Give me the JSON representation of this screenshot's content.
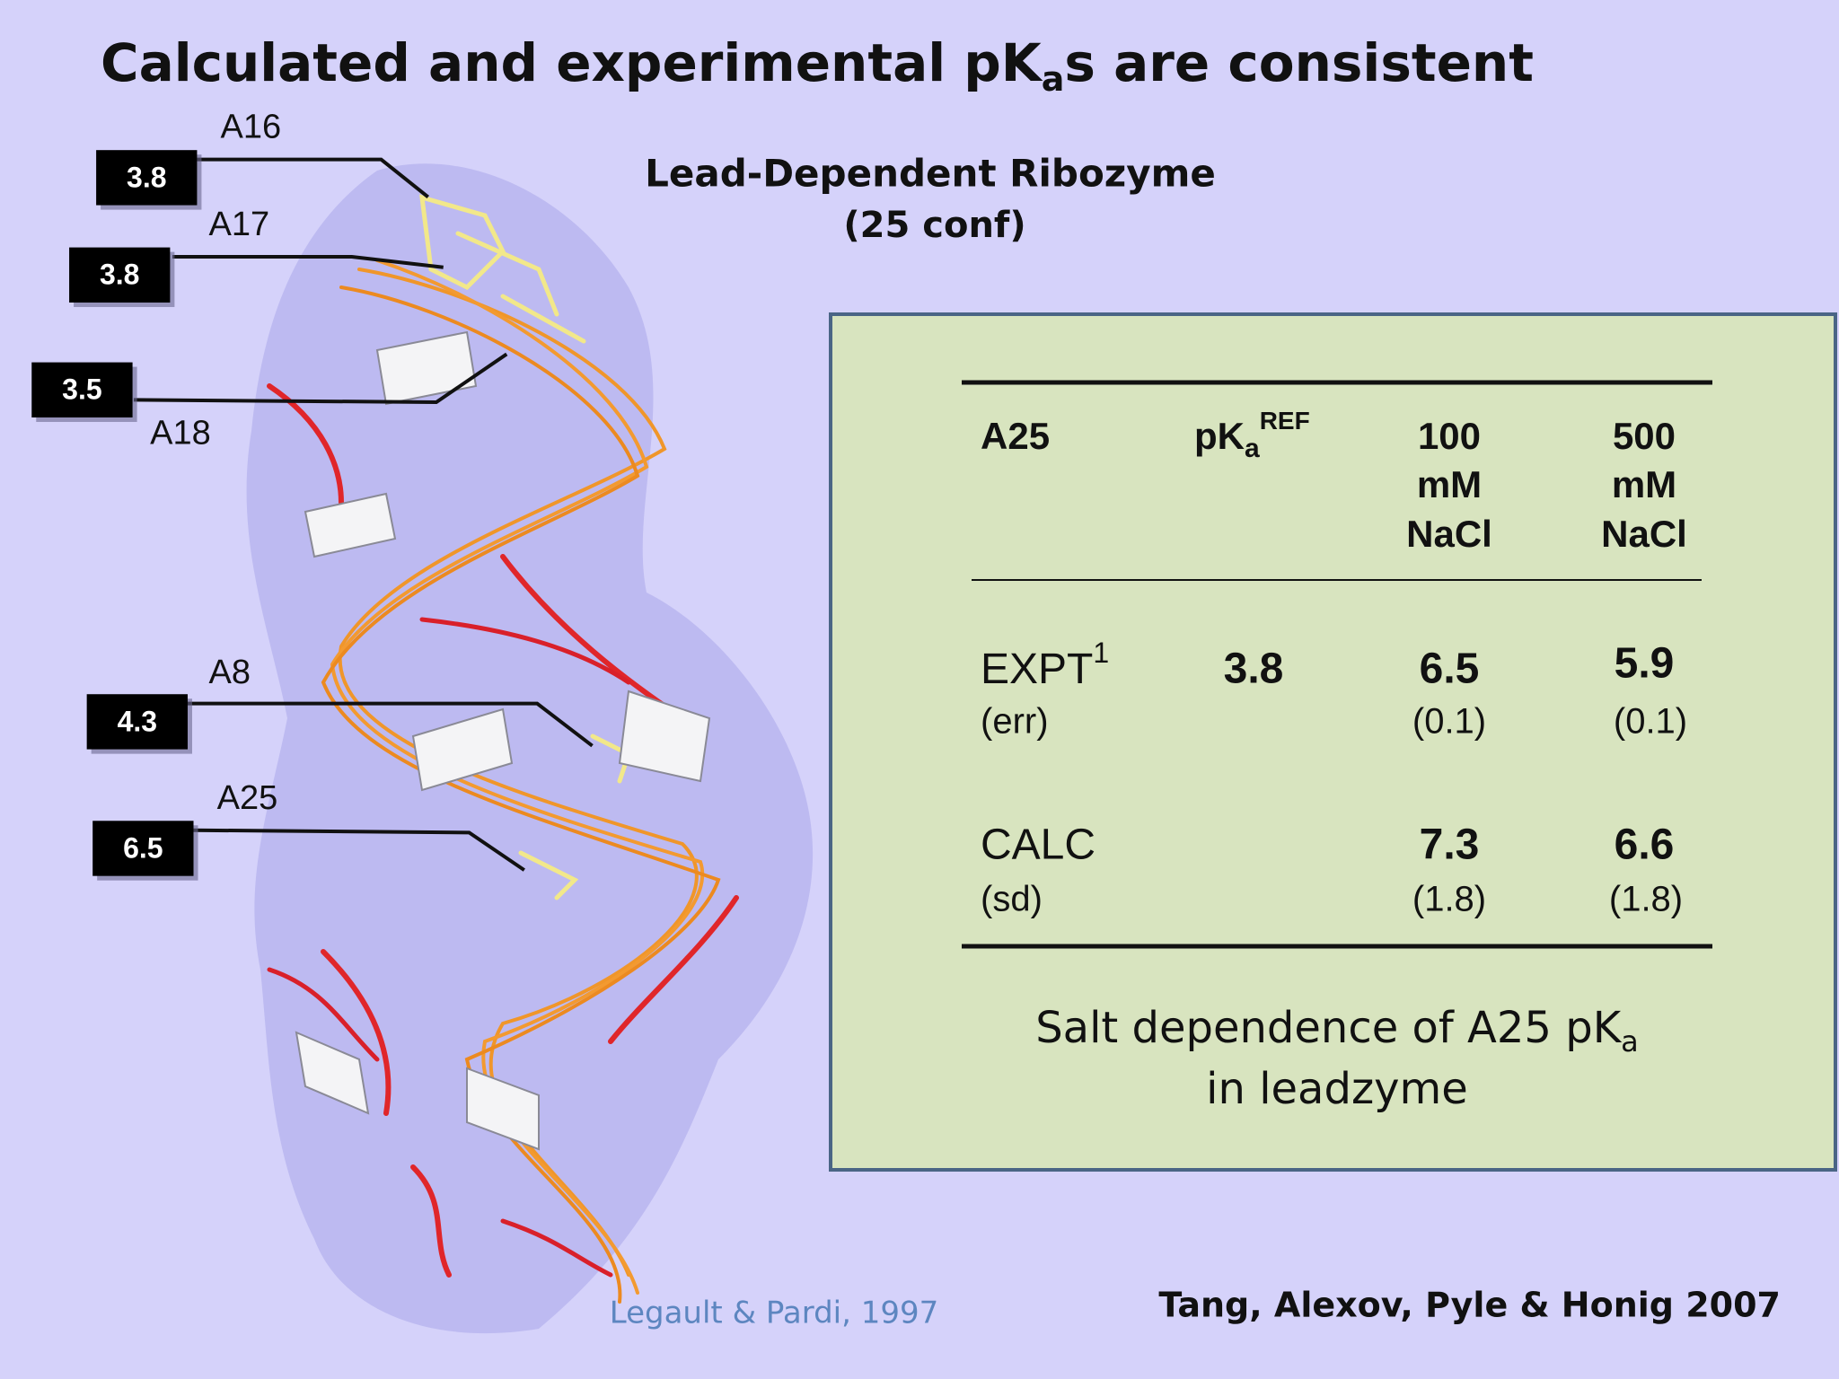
{
  "title": {
    "main": "Calculated and experimental pK",
    "sub": "a",
    "rest": "s are consistent"
  },
  "subtitle": {
    "line1": "Lead-Dependent Ribozyme",
    "line2": "(25 conf)"
  },
  "residues": [
    {
      "name": "A16",
      "pka": "3.8"
    },
    {
      "name": "A17",
      "pka": "3.8"
    },
    {
      "name": "A18",
      "pka": "3.5"
    },
    {
      "name": "A8",
      "pka": "4.3"
    },
    {
      "name": "A25",
      "pka": "6.5"
    }
  ],
  "table": {
    "header": {
      "c0": "A25",
      "c1": {
        "main": "pK",
        "sub": "a",
        "sup": "REF"
      },
      "c2": [
        "100",
        "mM",
        "NaCl"
      ],
      "c3": [
        "500",
        "mM",
        "NaCl"
      ]
    },
    "rows": [
      {
        "label": "EXPT",
        "label_sup": "1",
        "note": "(err)",
        "ref": "3.8",
        "c100": "6.5",
        "c100_note": "(0.1)",
        "c500": "5.9",
        "c500_note": "(0.1)"
      },
      {
        "label": "CALC",
        "note": "(sd)",
        "c100": "7.3",
        "c100_note": "(1.8)",
        "c500": "6.6",
        "c500_note": "(1.8)"
      }
    ]
  },
  "caption": {
    "line1_main": "Salt dependence of A25 pK",
    "line1_sub": "a",
    "line2": "in leadzyme"
  },
  "credits": {
    "structure": "Legault & Pardi, 1997",
    "authors": "Tang, Alexov, Pyle & Honig 2007"
  }
}
